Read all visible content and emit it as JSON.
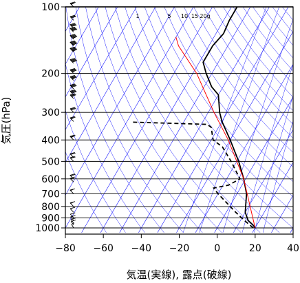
{
  "chart_data": {
    "type": "line",
    "chart_kind": "skew-T log-P",
    "xlabel": "気温(実線), 露点(破線)",
    "ylabel": "気圧(hPa)",
    "x_ticks": [
      -80,
      -60,
      -40,
      -20,
      0,
      20,
      40
    ],
    "x_tick_labels": [
      "−80",
      "−60",
      "−40",
      "−20",
      "0",
      "20",
      "40"
    ],
    "y_ticks": [
      100,
      200,
      300,
      400,
      500,
      600,
      700,
      800,
      900,
      1000
    ],
    "y_tick_labels": [
      "100",
      "200",
      "300",
      "400",
      "500",
      "600",
      "700",
      "800",
      "900",
      "1000"
    ],
    "xlim": [
      -80,
      40
    ],
    "ylim": [
      1050,
      100
    ],
    "y_scale": "log",
    "mixing_ratio_labels": [
      "1",
      "5",
      "10",
      "15",
      "20g"
    ],
    "series": [
      {
        "role": "temperature",
        "line_style": "solid",
        "color": "#000000",
        "points": [
          {
            "p": 1000,
            "t": 20
          },
          {
            "p": 970,
            "t": 18
          },
          {
            "p": 925,
            "t": 14
          },
          {
            "p": 850,
            "t": 10
          },
          {
            "p": 700,
            "t": 5
          },
          {
            "p": 600,
            "t": -1
          },
          {
            "p": 500,
            "t": -9
          },
          {
            "p": 400,
            "t": -20
          },
          {
            "p": 330,
            "t": -30
          },
          {
            "p": 300,
            "t": -34
          },
          {
            "p": 250,
            "t": -40
          },
          {
            "p": 230,
            "t": -46
          },
          {
            "p": 200,
            "t": -53
          },
          {
            "p": 178,
            "t": -58
          },
          {
            "p": 150,
            "t": -58
          },
          {
            "p": 132,
            "t": -56
          },
          {
            "p": 115,
            "t": -57
          },
          {
            "p": 100,
            "t": -57
          }
        ]
      },
      {
        "role": "dewpoint",
        "line_style": "dashed",
        "color": "#000000",
        "points": [
          {
            "p": 1000,
            "t": 19
          },
          {
            "p": 925,
            "t": 12
          },
          {
            "p": 850,
            "t": 5
          },
          {
            "p": 700,
            "t": -10
          },
          {
            "p": 660,
            "t": -14
          },
          {
            "p": 640,
            "t": -7
          },
          {
            "p": 600,
            "t": -3
          },
          {
            "p": 500,
            "t": -13
          },
          {
            "p": 430,
            "t": -22
          },
          {
            "p": 400,
            "t": -29
          },
          {
            "p": 350,
            "t": -34
          },
          {
            "p": 340,
            "t": -37
          },
          {
            "p": 332,
            "t": -78
          }
        ]
      },
      {
        "role": "reference",
        "line_style": "solid",
        "color": "#ff0000",
        "points": [
          {
            "p": 1000,
            "t": 20
          },
          {
            "p": 600,
            "t": -1
          },
          {
            "p": 400,
            "t": -21
          },
          {
            "p": 300,
            "t": -37
          },
          {
            "p": 200,
            "t": -58
          },
          {
            "p": 150,
            "t": -76
          },
          {
            "p": 137,
            "t": -80
          }
        ]
      }
    ],
    "grid_lines": {
      "color": "#1a1aff",
      "isotherms_every": 10,
      "isobars": [
        100,
        200,
        300,
        400,
        500,
        600,
        700,
        800,
        900,
        1000
      ]
    },
    "wind_barbs": [
      {
        "p": 1000,
        "dir": 180,
        "kt": 5
      },
      {
        "p": 970,
        "dir": 200,
        "kt": 10
      },
      {
        "p": 950,
        "dir": 200,
        "kt": 10
      },
      {
        "p": 925,
        "dir": 220,
        "kt": 10
      },
      {
        "p": 900,
        "dir": 230,
        "kt": 10
      },
      {
        "p": 850,
        "dir": 240,
        "kt": 10
      },
      {
        "p": 800,
        "dir": 250,
        "kt": 15
      },
      {
        "p": 700,
        "dir": 260,
        "kt": 15
      },
      {
        "p": 620,
        "dir": 260,
        "kt": 15
      },
      {
        "p": 600,
        "dir": 260,
        "kt": 20
      },
      {
        "p": 500,
        "dir": 260,
        "kt": 20
      },
      {
        "p": 480,
        "dir": 260,
        "kt": 20
      },
      {
        "p": 400,
        "dir": 260,
        "kt": 25
      },
      {
        "p": 330,
        "dir": 260,
        "kt": 25
      },
      {
        "p": 300,
        "dir": 250,
        "kt": 30
      },
      {
        "p": 260,
        "dir": 250,
        "kt": 35
      },
      {
        "p": 250,
        "dir": 250,
        "kt": 40
      },
      {
        "p": 235,
        "dir": 255,
        "kt": 40
      },
      {
        "p": 215,
        "dir": 255,
        "kt": 45
      },
      {
        "p": 200,
        "dir": 255,
        "kt": 45
      },
      {
        "p": 180,
        "dir": 260,
        "kt": 50
      },
      {
        "p": 160,
        "dir": 260,
        "kt": 55
      },
      {
        "p": 150,
        "dir": 260,
        "kt": 55
      },
      {
        "p": 140,
        "dir": 260,
        "kt": 55
      },
      {
        "p": 130,
        "dir": 255,
        "kt": 50
      },
      {
        "p": 125,
        "dir": 255,
        "kt": 40
      },
      {
        "p": 115,
        "dir": 250,
        "kt": 30
      },
      {
        "p": 100,
        "dir": 250,
        "kt": 25
      }
    ]
  }
}
